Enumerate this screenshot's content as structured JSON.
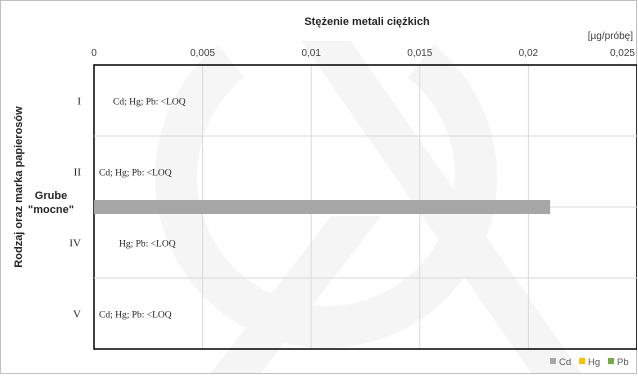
{
  "chart_data": {
    "type": "bar",
    "orientation": "horizontal",
    "title": "Stężenie metali ciężkich",
    "unit_label": "[µg/próbę]",
    "ylabel": "Rodzaj oraz marka papierosów",
    "group_label": "Grube \"mocne\"",
    "x_ticks": [
      "0",
      "0,005",
      "0,01",
      "0,015",
      "0,02",
      "0,025"
    ],
    "x_tick_values": [
      0,
      0.005,
      0.01,
      0.015,
      0.02,
      0.025
    ],
    "xlim": [
      0,
      0.025
    ],
    "grid": true,
    "legend_position": "bottom-right",
    "categories": [
      "I",
      "II",
      "IV",
      "V"
    ],
    "annotations": [
      "Cd; Hg; Pb: <LOQ",
      "Cd; Hg; Pb: <LOQ",
      "Hg; Pb: <LOQ",
      "Cd; Hg; Pb: <LOQ"
    ],
    "series": [
      {
        "name": "Cd",
        "color": "#a6a6a6",
        "values": [
          null,
          null,
          0.021,
          null
        ]
      },
      {
        "name": "Hg",
        "color": "#ffc000",
        "values": [
          null,
          null,
          null,
          null
        ]
      },
      {
        "name": "Pb",
        "color": "#70ad47",
        "values": [
          null,
          null,
          null,
          null
        ]
      }
    ]
  }
}
